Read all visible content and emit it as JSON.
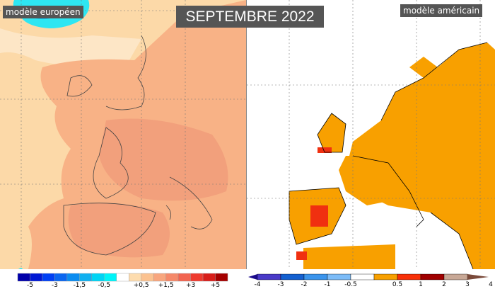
{
  "title": "SEPTEMBRE 2022",
  "left_panel": {
    "label": "modèle européen",
    "legend": {
      "colors": [
        "#0000aa",
        "#0018d4",
        "#0040f4",
        "#0a66f0",
        "#0a8cf0",
        "#10b0f0",
        "#00d4f4",
        "#00f4f8",
        "#ffffff",
        "#fddcae",
        "#fbc290",
        "#f8a67e",
        "#f5896a",
        "#f26450",
        "#ee3a2e",
        "#d81e1a",
        "#a50000"
      ],
      "tick_labels": [
        "-5",
        "-3",
        "-1,5",
        "-0,5",
        "+0,5",
        "+1,5",
        "+3",
        "+5"
      ]
    },
    "colors": {
      "background": "#fcd9a8",
      "land_anomaly": "#f8b286",
      "stronger_anomaly": "#f2a07c",
      "cold": "#2ee6f2"
    }
  },
  "right_panel": {
    "label": "modèle américain",
    "legend": {
      "colors": [
        "#1a0a8c",
        "#4a3ac8",
        "#1460d0",
        "#3a94ec",
        "#7cbcf8",
        "#ffffff",
        "#f8a000",
        "#f83008",
        "#a00000",
        "#c8a896",
        "#7a4a3a"
      ],
      "tick_labels": [
        "-4",
        "-3",
        "-2",
        "-1",
        "-0.5",
        "0.5",
        "1",
        "2",
        "3",
        "4"
      ]
    },
    "colors": {
      "background": "#ffffff",
      "anomaly_05_1": "#f8a000",
      "anomaly_1_2": "#f03010"
    }
  }
}
